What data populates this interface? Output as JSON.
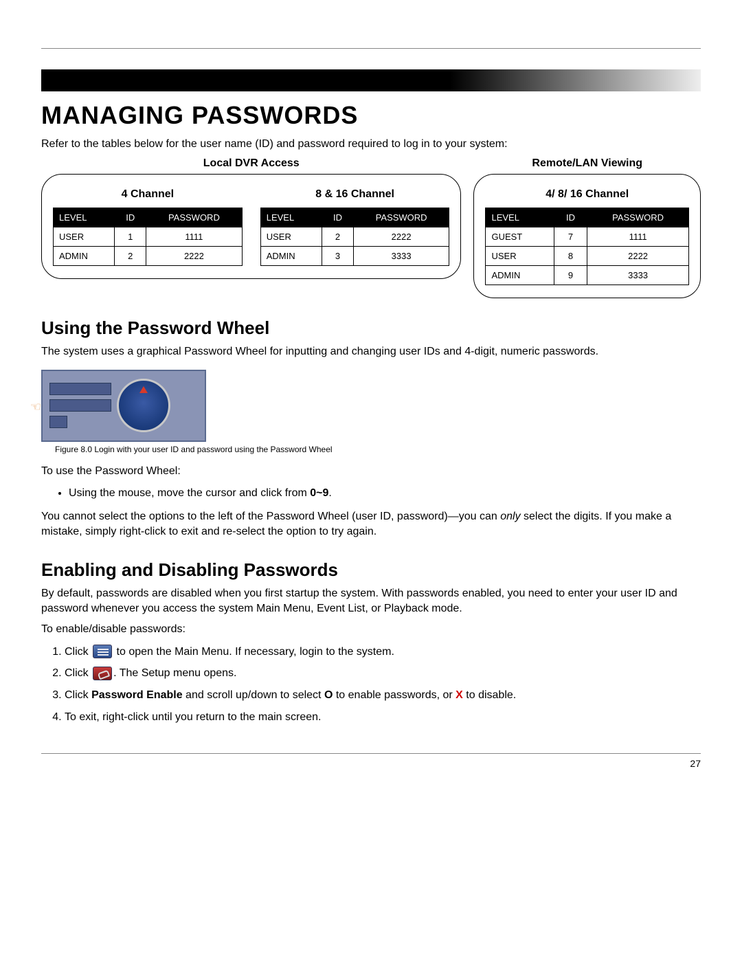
{
  "title": "MANAGING PASSWORDS",
  "intro": "Refer to the tables below for the user name (ID) and password required to log in to your system:",
  "local_label": "Local DVR Access",
  "remote_label": "Remote/LAN Viewing",
  "columns": {
    "level": "LEVEL",
    "id": "ID",
    "password": "PASSWORD"
  },
  "local": {
    "t4": {
      "heading": "4 Channel",
      "rows": [
        {
          "level": "USER",
          "id": "1",
          "password": "1111"
        },
        {
          "level": "ADMIN",
          "id": "2",
          "password": "2222"
        }
      ]
    },
    "t816": {
      "heading": "8 & 16 Channel",
      "rows": [
        {
          "level": "USER",
          "id": "2",
          "password": "2222"
        },
        {
          "level": "ADMIN",
          "id": "3",
          "password": "3333"
        }
      ]
    }
  },
  "remote": {
    "heading": "4/ 8/ 16 Channel",
    "rows": [
      {
        "level": "GUEST",
        "id": "7",
        "password": "1111"
      },
      {
        "level": "USER",
        "id": "8",
        "password": "2222"
      },
      {
        "level": "ADMIN",
        "id": "9",
        "password": "3333"
      }
    ]
  },
  "wheel": {
    "heading": "Using the Password Wheel",
    "desc": "The system uses a graphical Password Wheel for inputting and changing user IDs and 4-digit, numeric passwords.",
    "caption": "Figure 8.0 Login with your user ID and password using the Password Wheel",
    "touse": "To use the Password Wheel:",
    "bullet_pre": "Using the mouse, move the cursor and click from ",
    "bullet_bold": "0~9",
    "bullet_post": ".",
    "note_pre": "You cannot select the options to the left of the Password Wheel (user ID, password)—you can ",
    "note_italic": "only",
    "note_post": " select the digits. If you make a mistake, simply right-click to exit and re-select the option to try again."
  },
  "enable": {
    "heading": "Enabling and Disabling Passwords",
    "desc": "By default, passwords are disabled when you first startup the system. With passwords enabled, you need to enter your user ID and password whenever you access the system Main Menu, Event List, or Playback mode.",
    "toenable": "To enable/disable passwords:",
    "steps": {
      "s1_pre": "Click ",
      "s1_post": " to open the Main Menu. If necessary, login to the system.",
      "s2_pre": "Click ",
      "s2_post": ". The Setup menu opens.",
      "s3_pre": "Click ",
      "s3_bold": "Password Enable",
      "s3_mid": " and scroll up/down to select ",
      "s3_o": "O",
      "s3_mid2": " to enable passwords, or ",
      "s3_x": "X",
      "s3_post": " to disable.",
      "s4": "To exit, right-click until you return to the main screen."
    }
  },
  "page_number": "27",
  "colors": {
    "header_bg": "#000000",
    "header_fg": "#ffffff",
    "rule": "#888888",
    "red": "#d00000"
  }
}
